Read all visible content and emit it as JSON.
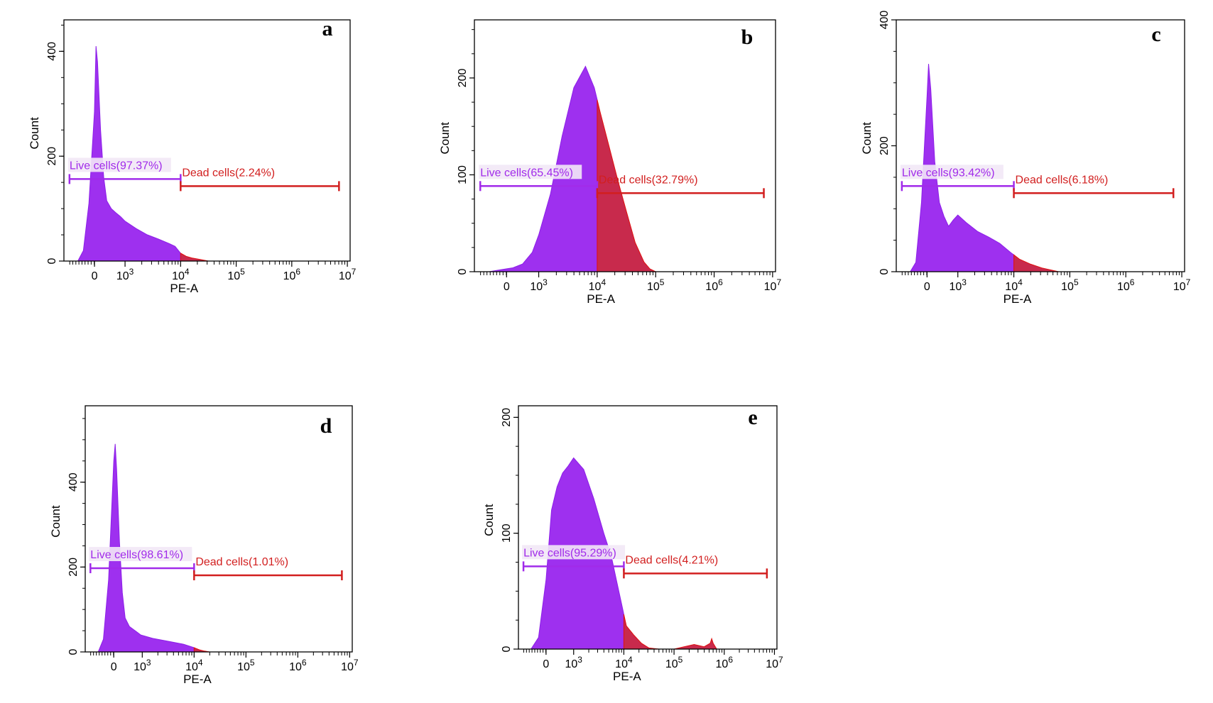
{
  "colors": {
    "live": "#a12bea",
    "live_fill": "#9e30ef",
    "dead": "#d21f1f",
    "dead_fill": "#c82a4c",
    "axis": "#000000",
    "label_bg": "#f2e8f6"
  },
  "chart_data": [
    {
      "type": "histogram",
      "panel": "a",
      "xlabel": "PE-A",
      "ylabel": "Count",
      "x_scale": "log",
      "x_ticks": [
        "0",
        "10^3",
        "10^4",
        "10^5",
        "10^6",
        "10^7"
      ],
      "y_ticks": [
        0,
        200,
        400
      ],
      "ylim": [
        0,
        460
      ],
      "gate_boundary": "10^4",
      "series": [
        {
          "name": "Live cells",
          "percent": "97.37%",
          "label": "Live cells(97.37%)"
        },
        {
          "name": "Dead cells",
          "percent": "2.24%",
          "label": "Dead cells(2.24%)"
        }
      ],
      "profile": [
        [
          -0.3,
          0
        ],
        [
          -0.2,
          20
        ],
        [
          -0.1,
          110
        ],
        [
          0,
          285
        ],
        [
          0.05,
          410
        ],
        [
          0.1,
          380
        ],
        [
          0.2,
          250
        ],
        [
          0.3,
          160
        ],
        [
          0.4,
          115
        ],
        [
          0.55,
          100
        ],
        [
          0.7,
          92
        ],
        [
          0.85,
          85
        ],
        [
          1,
          76
        ],
        [
          1.2,
          62
        ],
        [
          1.4,
          50
        ],
        [
          1.6,
          42
        ],
        [
          1.8,
          33
        ],
        [
          1.9,
          28
        ],
        [
          2,
          15
        ],
        [
          2.1,
          9
        ],
        [
          2.2,
          6
        ],
        [
          2.35,
          3
        ],
        [
          2.5,
          0
        ]
      ]
    },
    {
      "type": "histogram",
      "panel": "b",
      "xlabel": "PE-A",
      "ylabel": "Count",
      "x_scale": "log",
      "x_ticks": [
        "0",
        "10^3",
        "10^4",
        "10^5",
        "10^6",
        "10^7"
      ],
      "y_ticks": [
        0,
        100,
        200
      ],
      "ylim": [
        0,
        260
      ],
      "gate_boundary": "10^4",
      "series": [
        {
          "name": "Live cells",
          "percent": "65.45%",
          "label": "Live cells(65.45%)"
        },
        {
          "name": "Dead cells",
          "percent": "32.79%",
          "label": "Dead cells(32.79%)"
        }
      ],
      "profile": [
        [
          -0.3,
          0
        ],
        [
          -0.1,
          2
        ],
        [
          0.2,
          4
        ],
        [
          0.5,
          8
        ],
        [
          0.8,
          20
        ],
        [
          1,
          38
        ],
        [
          1.2,
          80
        ],
        [
          1.4,
          140
        ],
        [
          1.6,
          190
        ],
        [
          1.8,
          212
        ],
        [
          1.95,
          190
        ],
        [
          2.05,
          165
        ],
        [
          2.2,
          130
        ],
        [
          2.35,
          95
        ],
        [
          2.5,
          62
        ],
        [
          2.65,
          30
        ],
        [
          2.8,
          10
        ],
        [
          2.9,
          3
        ],
        [
          3,
          0
        ]
      ]
    },
    {
      "type": "histogram",
      "panel": "c",
      "xlabel": "PE-A",
      "ylabel": "Count",
      "x_scale": "log",
      "x_ticks": [
        "0",
        "10^3",
        "10^4",
        "10^5",
        "10^6",
        "10^7"
      ],
      "y_ticks": [
        0,
        200,
        400
      ],
      "ylim": [
        0,
        400
      ],
      "gate_boundary": "10^4",
      "series": [
        {
          "name": "Live cells",
          "percent": "93.42%",
          "label": "Live cells(93.42%)"
        },
        {
          "name": "Dead cells",
          "percent": "6.18%",
          "label": "Dead cells(6.18%)"
        }
      ],
      "profile": [
        [
          -0.3,
          0
        ],
        [
          -0.2,
          15
        ],
        [
          -0.1,
          110
        ],
        [
          0,
          280
        ],
        [
          0.05,
          330
        ],
        [
          0.12,
          290
        ],
        [
          0.25,
          175
        ],
        [
          0.4,
          110
        ],
        [
          0.55,
          88
        ],
        [
          0.7,
          72
        ],
        [
          0.85,
          82
        ],
        [
          1,
          90
        ],
        [
          1.15,
          78
        ],
        [
          1.35,
          64
        ],
        [
          1.55,
          55
        ],
        [
          1.75,
          45
        ],
        [
          1.95,
          30
        ],
        [
          2.1,
          20
        ],
        [
          2.3,
          12
        ],
        [
          2.5,
          6
        ],
        [
          2.7,
          2
        ],
        [
          2.8,
          0
        ]
      ]
    },
    {
      "type": "histogram",
      "panel": "d",
      "xlabel": "PE-A",
      "ylabel": "Count",
      "x_scale": "log",
      "x_ticks": [
        "0",
        "10^3",
        "10^4",
        "10^5",
        "10^6",
        "10^7"
      ],
      "y_ticks": [
        0,
        200,
        400
      ],
      "ylim": [
        0,
        580
      ],
      "gate_boundary": "10^4",
      "series": [
        {
          "name": "Live cells",
          "percent": "98.61%",
          "label": "Live cells(98.61%)"
        },
        {
          "name": "Dead cells",
          "percent": "1.01%",
          "label": "Dead cells(1.01%)"
        }
      ],
      "profile": [
        [
          -0.3,
          0
        ],
        [
          -0.2,
          30
        ],
        [
          -0.1,
          170
        ],
        [
          0,
          450
        ],
        [
          0.05,
          490
        ],
        [
          0.1,
          430
        ],
        [
          0.2,
          260
        ],
        [
          0.3,
          140
        ],
        [
          0.4,
          80
        ],
        [
          0.55,
          60
        ],
        [
          0.75,
          50
        ],
        [
          0.95,
          40
        ],
        [
          1.2,
          32
        ],
        [
          1.5,
          25
        ],
        [
          1.8,
          18
        ],
        [
          2,
          10
        ],
        [
          2.1,
          5
        ],
        [
          2.2,
          2
        ],
        [
          2.3,
          0
        ]
      ]
    },
    {
      "type": "histogram",
      "panel": "e",
      "xlabel": "PE-A",
      "ylabel": "Count",
      "x_scale": "log",
      "x_ticks": [
        "0",
        "10^3",
        "10^4",
        "10^5",
        "10^6",
        "10^7"
      ],
      "y_ticks": [
        0,
        100,
        200
      ],
      "ylim": [
        0,
        210
      ],
      "gate_boundary": "10^4",
      "series": [
        {
          "name": "Live cells",
          "percent": "95.29%",
          "label": "Live cells(95.29%)"
        },
        {
          "name": "Dead cells",
          "percent": "4.21%",
          "label": "Dead cells(4.21%)"
        }
      ],
      "profile": [
        [
          -0.3,
          0
        ],
        [
          -0.15,
          10
        ],
        [
          0,
          60
        ],
        [
          0.2,
          120
        ],
        [
          0.4,
          140
        ],
        [
          0.6,
          152
        ],
        [
          0.8,
          158
        ],
        [
          1,
          165
        ],
        [
          1.2,
          155
        ],
        [
          1.4,
          130
        ],
        [
          1.6,
          100
        ],
        [
          1.75,
          80
        ],
        [
          1.85,
          60
        ],
        [
          1.95,
          40
        ],
        [
          2.05,
          20
        ],
        [
          2.2,
          12
        ],
        [
          2.35,
          5
        ],
        [
          2.5,
          1
        ],
        [
          2.7,
          0
        ],
        [
          3.0,
          0
        ],
        [
          3.2,
          2
        ],
        [
          3.4,
          4
        ],
        [
          3.6,
          2
        ],
        [
          3.72,
          5
        ],
        [
          3.75,
          9
        ],
        [
          3.78,
          5
        ],
        [
          3.85,
          0
        ]
      ]
    }
  ]
}
